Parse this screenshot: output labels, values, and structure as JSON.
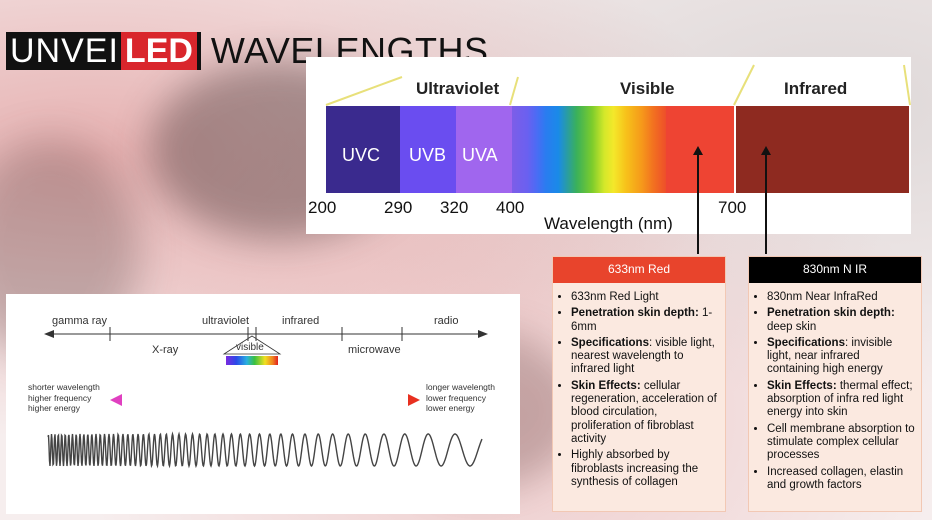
{
  "title": {
    "logo_part1": "UNVEI",
    "logo_part2": "LED",
    "text": "WAVELENGTHS"
  },
  "spectrum": {
    "headers": {
      "ultraviolet": "Ultraviolet",
      "visible": "Visible",
      "infrared": "Infrared"
    },
    "bands": {
      "uvc": "UVC",
      "uvb": "UVB",
      "uva": "UVA"
    },
    "ticks": [
      "200",
      "290",
      "320",
      "400",
      "700"
    ],
    "axis_label": "Wavelength (nm)"
  },
  "colors": {
    "uvc": "#3a2a8e",
    "uvb": "#6a4df0",
    "uva": "#a066ee",
    "red": "#ee4433",
    "infrared": "#8e2a20",
    "card_red_head": "#e8442c",
    "card_nir_head": "#000000"
  },
  "cards": {
    "red": {
      "header": "633nm Red",
      "items": [
        {
          "bold": "",
          "text": "633nm Red Light"
        },
        {
          "bold": "Penetration skin depth:",
          "text": " 1-6mm"
        },
        {
          "bold": "Specifications",
          "text": ": visible light, nearest wavelength to infrared light"
        },
        {
          "bold": "Skin Effects:",
          "text": " cellular regeneration, acceleration of blood circulation, proliferation of fibroblast activity"
        },
        {
          "bold": "",
          "text": "Highly absorbed by fibroblasts increasing the synthesis of collagen"
        }
      ]
    },
    "nir": {
      "header": "830nm N IR",
      "items": [
        {
          "bold": "",
          "text": "830nm Near InfraRed"
        },
        {
          "bold": "Penetration skin depth:",
          "text": " deep skin"
        },
        {
          "bold": "Specifications",
          "text": ": invisible light, near infrared containing high energy"
        },
        {
          "bold": "Skin Effects:",
          "text": " thermal effect; absorption of infra red light energy into skin"
        },
        {
          "bold": "",
          "text": "Cell membrane absorption to stimulate complex cellular processes"
        },
        {
          "bold": "",
          "text": "Increased collagen, elastin and growth factors"
        }
      ]
    }
  },
  "em": {
    "gamma_ray": "gamma ray",
    "ultraviolet": "ultraviolet",
    "infrared": "infrared",
    "radio": "radio",
    "xray": "X-ray",
    "visible": "visible",
    "microwave": "microwave",
    "left_l1": "shorter wavelength",
    "left_l2": "higher frequency",
    "left_l3": "higher energy",
    "right_l1": "longer wavelength",
    "right_l2": "lower frequency",
    "right_l3": "lower energy"
  }
}
